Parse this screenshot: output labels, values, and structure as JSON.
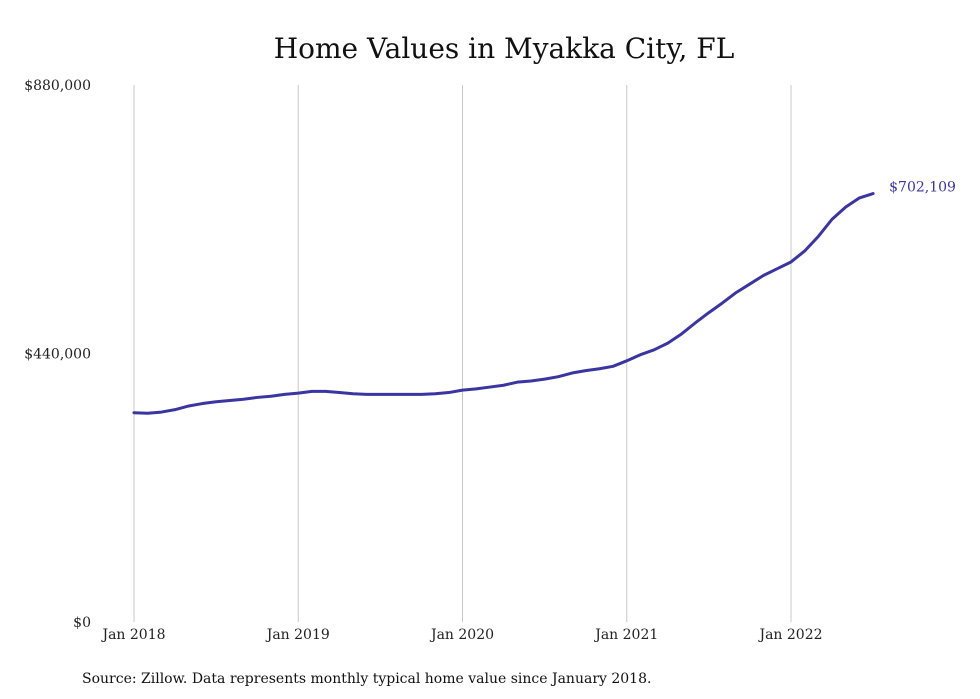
{
  "chart_data": {
    "type": "line",
    "title": "Home Values in Myakka City, FL",
    "xlabel": "",
    "ylabel": "",
    "ylim": [
      0,
      880000
    ],
    "y_ticks": [
      "$0",
      "$440,000",
      "$880,000"
    ],
    "y_tick_values": [
      0,
      440000,
      880000
    ],
    "x_ticks": [
      "Jan 2018",
      "Jan 2019",
      "Jan 2020",
      "Jan 2021",
      "Jan 2022"
    ],
    "x_tick_dates": [
      "2018-01",
      "2019-01",
      "2020-01",
      "2021-01",
      "2022-01"
    ],
    "grid": "vertical",
    "end_label": "$702,109",
    "line_color": "#3a35a0",
    "series": [
      {
        "x": [
          "2018-01",
          "2018-02",
          "2018-03",
          "2018-04",
          "2018-05",
          "2018-06",
          "2018-07",
          "2018-08",
          "2018-09",
          "2018-10",
          "2018-11",
          "2018-12",
          "2019-01",
          "2019-02",
          "2019-03",
          "2019-04",
          "2019-05",
          "2019-06",
          "2019-07",
          "2019-08",
          "2019-09",
          "2019-10",
          "2019-11",
          "2019-12",
          "2020-01",
          "2020-02",
          "2020-03",
          "2020-04",
          "2020-05",
          "2020-06",
          "2020-07",
          "2020-08",
          "2020-09",
          "2020-10",
          "2020-11",
          "2020-12",
          "2021-01",
          "2021-02",
          "2021-03",
          "2021-04",
          "2021-05",
          "2021-06",
          "2021-07",
          "2021-08",
          "2021-09",
          "2021-10",
          "2021-11",
          "2021-12",
          "2022-01",
          "2022-02",
          "2022-03",
          "2022-04",
          "2022-05",
          "2022-06",
          "2022-07"
        ],
        "values": [
          343000,
          342000,
          344000,
          348000,
          354000,
          358000,
          361000,
          363000,
          365000,
          368000,
          370000,
          373000,
          375000,
          378000,
          378000,
          376000,
          374000,
          373000,
          373000,
          373000,
          373000,
          373000,
          374000,
          376000,
          380000,
          382000,
          385000,
          388000,
          393000,
          395000,
          398000,
          402000,
          408000,
          412000,
          415000,
          419000,
          428000,
          438000,
          446000,
          457000,
          472000,
          490000,
          507000,
          523000,
          540000,
          554000,
          568000,
          579000,
          590000,
          608000,
          632000,
          660000,
          680000,
          695000,
          702109
        ]
      }
    ]
  },
  "footer": {
    "source": "Source: Zillow. Data represents monthly typical home value since January 2018."
  }
}
